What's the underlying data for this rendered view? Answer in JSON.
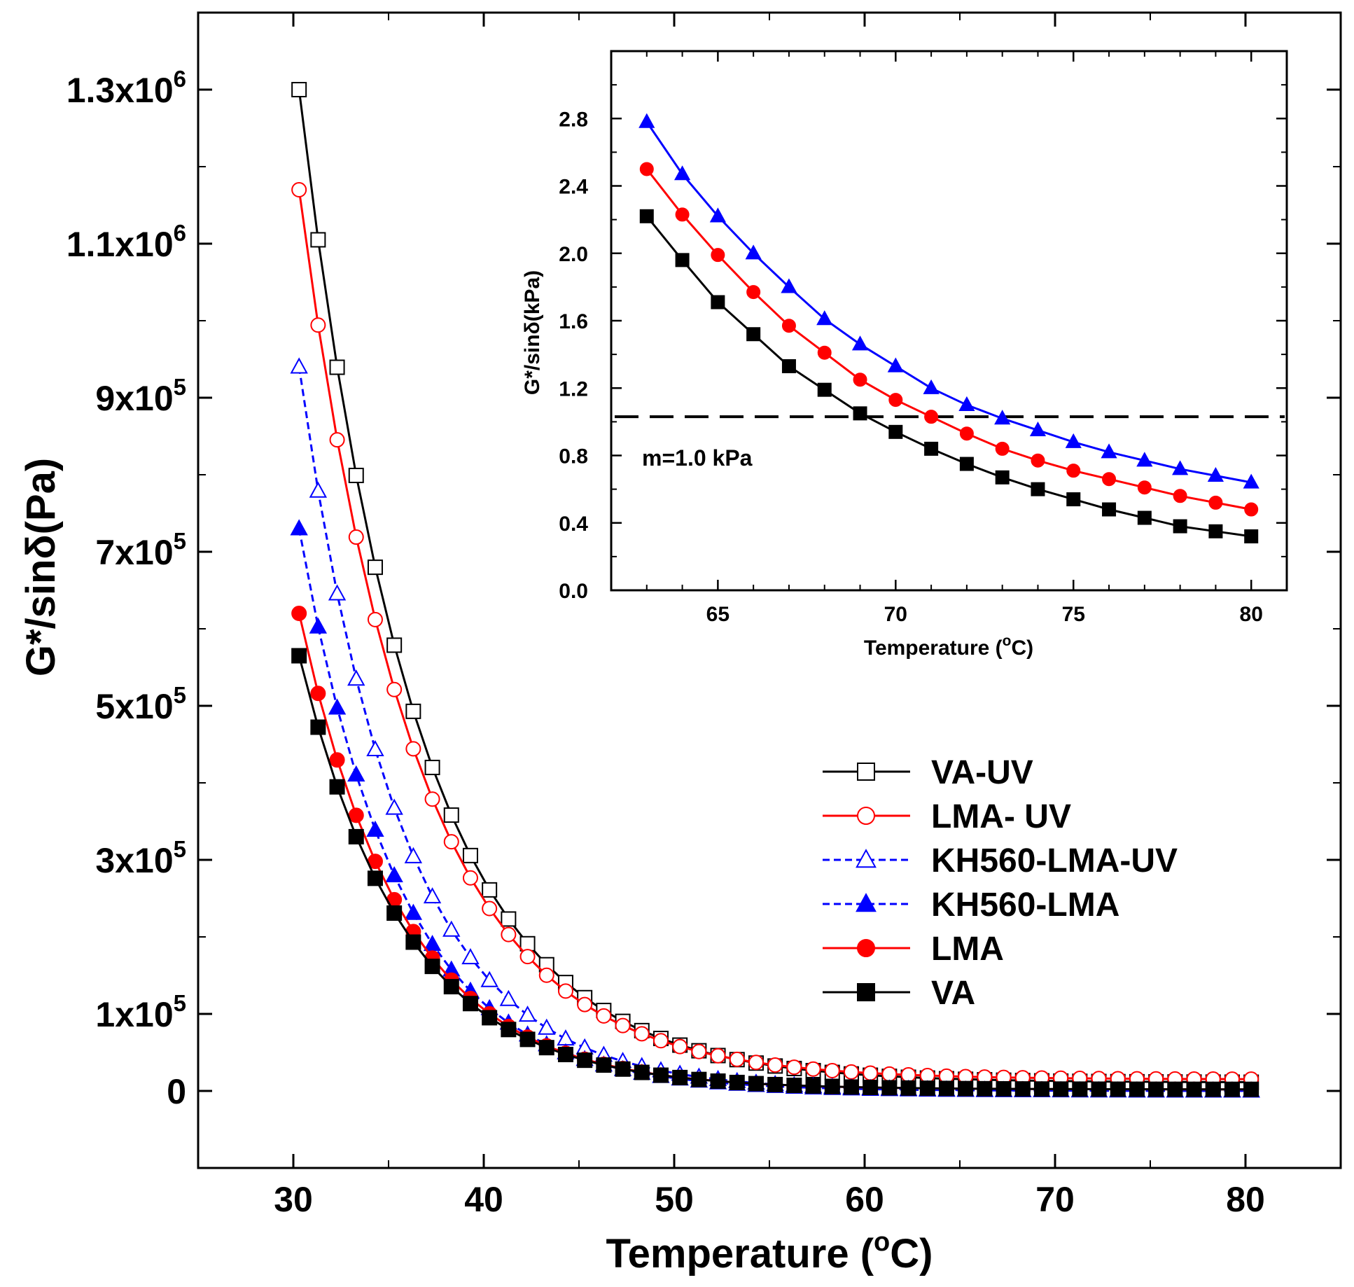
{
  "chart_data": [
    {
      "type": "line",
      "title": "",
      "xlabel_text": "Temperature (",
      "xlabel_sup": "o",
      "xlabel_end": "C)",
      "ylabel": "G*/sinδ(Pa)",
      "xlim": [
        25,
        85
      ],
      "ylim": [
        -100000,
        1400000
      ],
      "x_ticks": [
        30,
        40,
        50,
        60,
        70,
        80
      ],
      "x_tick_labels": [
        "30",
        "40",
        "50",
        "60",
        "70",
        "80"
      ],
      "y_ticks": [
        0,
        100000,
        300000,
        500000,
        700000,
        900000,
        1100000,
        1300000
      ],
      "y_tick_labels": [
        {
          "base": "0",
          "exp": ""
        },
        {
          "base": "1x10",
          "exp": "5"
        },
        {
          "base": "3x10",
          "exp": "5"
        },
        {
          "base": "5x10",
          "exp": "5"
        },
        {
          "base": "7x10",
          "exp": "5"
        },
        {
          "base": "9x10",
          "exp": "5"
        },
        {
          "base": "1.1x10",
          "exp": "6"
        },
        {
          "base": "1.3x10",
          "exp": "6"
        }
      ],
      "legend_position": "right",
      "x_start": 30.3,
      "x_step": 1.0,
      "n_points": 51,
      "series": [
        {
          "name": "VA-UV",
          "color": "#000000",
          "marker": "square",
          "filled": false,
          "dash": "",
          "A": 1300000,
          "k": 0.164,
          "floor": 11000
        },
        {
          "name": "LMA- UV",
          "color": "#ff0000",
          "marker": "circle",
          "filled": false,
          "dash": "",
          "A": 1170000,
          "k": 0.165,
          "floor": 15000
        },
        {
          "name": "KH560-LMA-UV",
          "color": "#0000ff",
          "marker": "triangle",
          "filled": false,
          "dash": "10 6",
          "A": 940000,
          "k": 0.188,
          "floor": 0
        },
        {
          "name": "KH560-LMA",
          "color": "#0000ff",
          "marker": "triangle",
          "filled": true,
          "dash": "10 6",
          "A": 730000,
          "k": 0.192,
          "floor": 0
        },
        {
          "name": "LMA",
          "color": "#ff0000",
          "marker": "circle",
          "filled": true,
          "dash": "",
          "A": 620000,
          "k": 0.184,
          "floor": 2000
        },
        {
          "name": "VA",
          "color": "#000000",
          "marker": "square",
          "filled": true,
          "dash": "",
          "A": 565000,
          "k": 0.18,
          "floor": 2000
        }
      ]
    },
    {
      "type": "line",
      "title": "",
      "xlabel_text": "Temperature (",
      "xlabel_sup": "o",
      "xlabel_end": "C)",
      "ylabel": "G*/sinδ(kPa)",
      "xlim": [
        62,
        81
      ],
      "ylim": [
        0,
        3.2
      ],
      "x_ticks": [
        65,
        70,
        75,
        80
      ],
      "x_tick_labels": [
        "65",
        "70",
        "75",
        "80"
      ],
      "y_ticks": [
        0.0,
        0.4,
        0.8,
        1.2,
        1.6,
        2.0,
        2.4,
        2.8
      ],
      "y_tick_labels": [
        "0.0",
        "0.4",
        "0.8",
        "1.2",
        "1.6",
        "2.0",
        "2.4",
        "2.8"
      ],
      "reference_line": {
        "value": 1.03,
        "label": "m=1.0 kPa"
      },
      "x": [
        63,
        64,
        65,
        66,
        67,
        68,
        69,
        70,
        71,
        72,
        73,
        74,
        75,
        76,
        77,
        78,
        79,
        80
      ],
      "series": [
        {
          "name": "KH560-LMA",
          "color": "#0000ff",
          "marker": "triangle",
          "values": [
            2.78,
            2.47,
            2.22,
            2.0,
            1.8,
            1.61,
            1.46,
            1.33,
            1.2,
            1.1,
            1.02,
            0.95,
            0.88,
            0.82,
            0.77,
            0.72,
            0.68,
            0.64
          ]
        },
        {
          "name": "LMA",
          "color": "#ff0000",
          "marker": "circle",
          "values": [
            2.5,
            2.23,
            1.99,
            1.77,
            1.57,
            1.41,
            1.25,
            1.13,
            1.03,
            0.93,
            0.84,
            0.77,
            0.71,
            0.66,
            0.61,
            0.56,
            0.52,
            0.48
          ]
        },
        {
          "name": "VA",
          "color": "#000000",
          "marker": "square",
          "values": [
            2.22,
            1.96,
            1.71,
            1.52,
            1.33,
            1.19,
            1.05,
            0.94,
            0.84,
            0.75,
            0.67,
            0.6,
            0.54,
            0.48,
            0.43,
            0.38,
            0.35,
            0.32
          ]
        }
      ]
    }
  ]
}
